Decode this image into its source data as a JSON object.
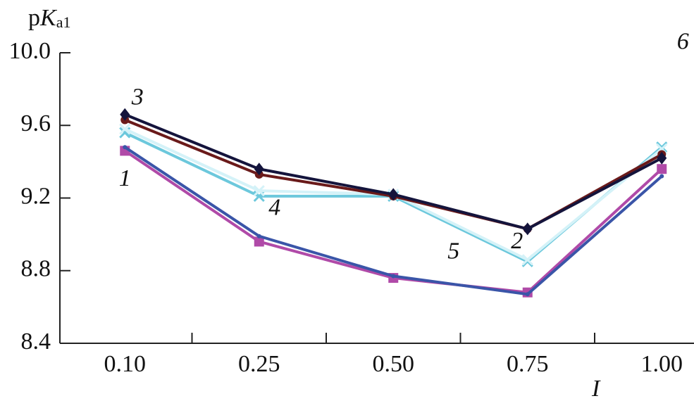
{
  "chart_data": {
    "type": "line",
    "y_label_parts": [
      "p",
      "K",
      "a1"
    ],
    "x_label": "I",
    "categories": [
      "0.10",
      "0.25",
      "0.50",
      "0.75",
      "1.00"
    ],
    "ylim": [
      8.4,
      10.0
    ],
    "yticks": [
      8.4,
      8.8,
      9.2,
      9.6,
      {
        "value": 10.0,
        "label": "10.0"
      }
    ],
    "series": [
      {
        "name": "1",
        "color": "#b04aa8",
        "marker": "square",
        "values": [
          9.46,
          8.96,
          8.76,
          8.68,
          9.36
        ]
      },
      {
        "name": "4",
        "color": "#3a55a8",
        "marker": "dot",
        "values": [
          9.48,
          8.99,
          8.77,
          8.67,
          9.32
        ]
      },
      {
        "name": "5",
        "color": "#6cc8dc",
        "marker": "cross",
        "values": [
          9.56,
          9.21,
          9.21,
          8.85,
          9.48
        ]
      },
      {
        "name": "6",
        "color": "#d4f2f8",
        "marker": "cross",
        "values": [
          9.58,
          9.24,
          9.22,
          8.86,
          9.47
        ]
      },
      {
        "name": "2",
        "color": "#6a1a1a",
        "marker": "circle",
        "values": [
          9.63,
          9.33,
          9.21,
          9.03,
          9.44
        ]
      },
      {
        "name": "3",
        "color": "#14143c",
        "marker": "diamond",
        "values": [
          9.66,
          9.36,
          9.22,
          9.03,
          9.42
        ]
      }
    ]
  }
}
